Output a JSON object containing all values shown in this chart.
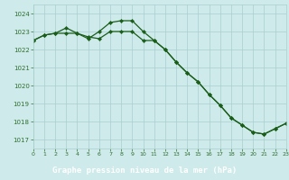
{
  "title": "Graphe pression niveau de la mer (hPa)",
  "plot_bg": "#ceeaea",
  "label_bg": "#2d6e2d",
  "grid_color": "#a8cece",
  "line_color": "#1a5e1a",
  "label_text_color": "#ffffff",
  "tick_color": "#2d6e2d",
  "xlim": [
    0,
    23
  ],
  "ylim": [
    1016.5,
    1024.5
  ],
  "yticks": [
    1017,
    1018,
    1019,
    1020,
    1021,
    1022,
    1023,
    1024
  ],
  "xticks": [
    0,
    1,
    2,
    3,
    4,
    5,
    6,
    7,
    8,
    9,
    10,
    11,
    12,
    13,
    14,
    15,
    16,
    17,
    18,
    19,
    20,
    21,
    22,
    23
  ],
  "series1_x": [
    0,
    1,
    2,
    3,
    4,
    5,
    6,
    7,
    8,
    9,
    10,
    11,
    12,
    13,
    14,
    15,
    16,
    17,
    18,
    19,
    20,
    21,
    22,
    23
  ],
  "series1_y": [
    1022.5,
    1022.8,
    1022.9,
    1022.9,
    1022.9,
    1022.7,
    1022.6,
    1023.0,
    1023.0,
    1023.0,
    1022.5,
    1022.5,
    1022.0,
    1021.3,
    1020.7,
    1020.2,
    1019.5,
    1018.9,
    1018.2,
    1017.8,
    1017.4,
    1017.3,
    1017.6,
    1017.9
  ],
  "series2_x": [
    0,
    1,
    2,
    3,
    4,
    5,
    6,
    7,
    8,
    9,
    10,
    11,
    12,
    13,
    14,
    15,
    16,
    17,
    18,
    19,
    20,
    21,
    22,
    23
  ],
  "series2_y": [
    1022.5,
    1022.8,
    1022.9,
    1023.2,
    1022.9,
    1022.6,
    1023.0,
    1023.5,
    1023.6,
    1023.6,
    1023.0,
    1022.5,
    1022.0,
    1021.3,
    1020.7,
    1020.2,
    1019.5,
    1018.9,
    1018.2,
    1017.8,
    1017.4,
    1017.3,
    1017.6,
    1017.9
  ]
}
